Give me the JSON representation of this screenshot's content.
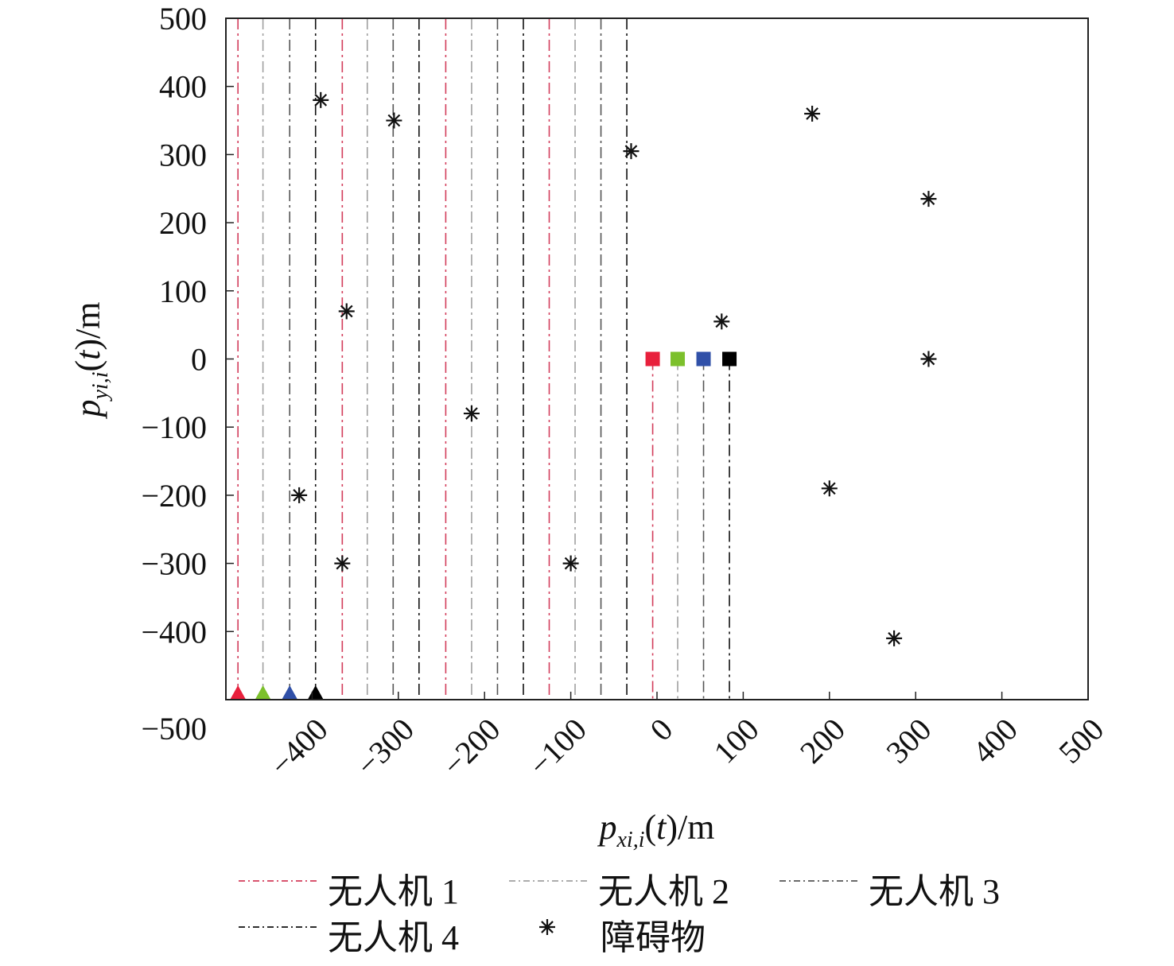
{
  "chart_data": {
    "type": "scatter",
    "xlabel": "p_{xi,i}(t)/m",
    "ylabel": "p_{yi,i}(t)/m",
    "xlim": [
      -500,
      500
    ],
    "ylim": [
      -500,
      500
    ],
    "xticks": [
      -400,
      -300,
      -200,
      -100,
      0,
      100,
      200,
      300,
      400,
      500
    ],
    "yticks": [
      500,
      400,
      300,
      200,
      100,
      0,
      -100,
      -200,
      -300,
      -400,
      -500
    ],
    "grid": false,
    "legend_placement": "bottom",
    "series": [
      {
        "name": "无人机 1",
        "color": "#d23c5a",
        "marker_color": "#e8203c",
        "start": [
          -486,
          -500
        ],
        "end": [
          -5,
          0
        ],
        "segments_x": [
          -486,
          -365,
          -245,
          -125
        ],
        "final_x": -5
      },
      {
        "name": "无人机 2",
        "color": "#a0a0a0",
        "marker_color": "#7cc02c",
        "start": [
          -457,
          -500
        ],
        "end": [
          24,
          0
        ],
        "segments_x": [
          -457,
          -336,
          -215,
          -95
        ],
        "final_x": 24
      },
      {
        "name": "无人机 3",
        "color": "#555555",
        "marker_color": "#3050a8",
        "start": [
          -426,
          -500
        ],
        "end": [
          54,
          0
        ],
        "segments_x": [
          -426,
          -306,
          -185,
          -65
        ],
        "final_x": 54
      },
      {
        "name": "无人机 4",
        "color": "#111111",
        "marker_color": "#000000",
        "start": [
          -396,
          -500
        ],
        "end": [
          84,
          0
        ],
        "segments_x": [
          -396,
          -276,
          -155,
          -35
        ],
        "final_x": 84
      }
    ],
    "obstacles": {
      "name": "障碍物",
      "points": [
        [
          -390,
          380
        ],
        [
          -305,
          350
        ],
        [
          -30,
          305
        ],
        [
          180,
          360
        ],
        [
          315,
          235
        ],
        [
          -360,
          70
        ],
        [
          75,
          55
        ],
        [
          315,
          0
        ],
        [
          -215,
          -80
        ],
        [
          -415,
          -200
        ],
        [
          200,
          -190
        ],
        [
          -365,
          -300
        ],
        [
          -100,
          -300
        ],
        [
          275,
          -410
        ]
      ]
    }
  }
}
